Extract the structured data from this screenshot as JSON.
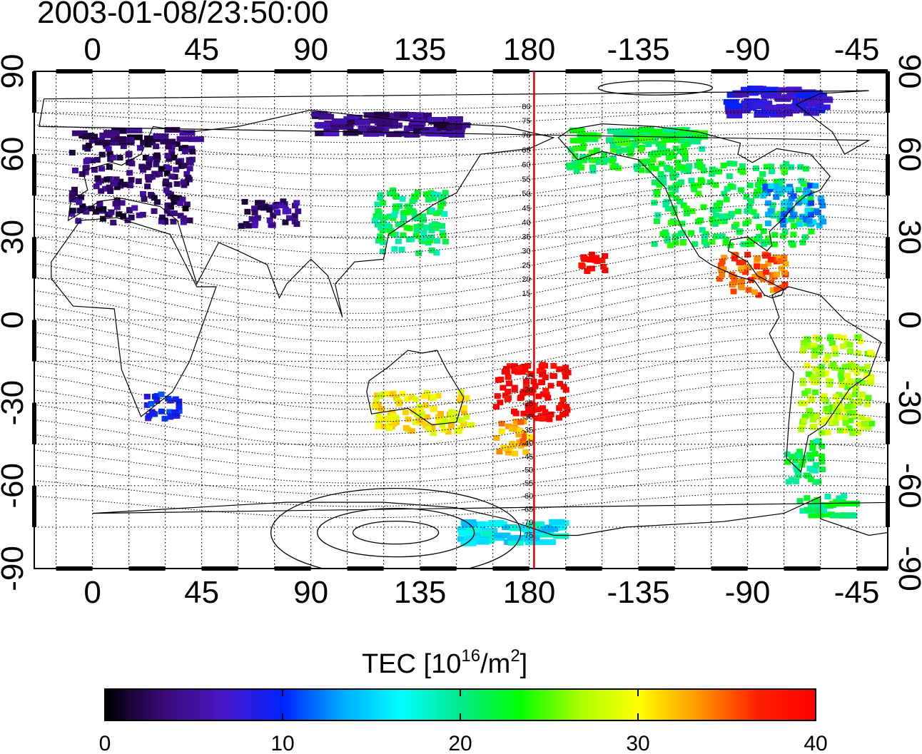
{
  "timestamp": "2003-01-08/23:50:00",
  "colorbar": {
    "title_text": "TEC  [10",
    "title_sup1": "16",
    "title_mid": "/m",
    "title_sup2": "2",
    "title_end": "]",
    "ticks": [
      "0",
      "10",
      "20",
      "30",
      "40"
    ],
    "min": 0,
    "max": 40,
    "colormap_stops": [
      "#000000",
      "#3a0a78",
      "#4b17c8",
      "#0022ff",
      "#00aaff",
      "#00ffff",
      "#00e88a",
      "#00ff00",
      "#a8ff00",
      "#ffff00",
      "#ff9900",
      "#ff2200",
      "#ff0000"
    ]
  },
  "map": {
    "lon_top_labels": [
      "0",
      "45",
      "90",
      "135",
      "180",
      "-135",
      "-90",
      "-45"
    ],
    "lon_bottom_labels": [
      "0",
      "45",
      "90",
      "135",
      "180",
      "-135",
      "-90",
      "-45"
    ],
    "lat_left_labels": [
      "90",
      "60",
      "30",
      "0",
      "-30",
      "-60",
      "-90"
    ],
    "lat_right_labels": [
      "90",
      "60",
      "30",
      "0",
      "-30",
      "-60",
      "-90"
    ],
    "lon_ticks_values": [
      0,
      45,
      90,
      135,
      180,
      225,
      270,
      315
    ],
    "lat_ticks_values": [
      90,
      60,
      30,
      0,
      -30,
      -60,
      -90
    ],
    "meridian_longitude": 182,
    "meridian_color": "#e00000",
    "magnetic_lat_labels": [
      "80",
      "75",
      "70",
      "65",
      "60",
      "55",
      "50",
      "45",
      "40",
      "35",
      "30",
      "25",
      "20",
      "15",
      "-15",
      "-20",
      "-25",
      "-30",
      "-35",
      "-40",
      "-45",
      "-50",
      "-55",
      "-60",
      "-65",
      "-70",
      "-75"
    ],
    "tec_regions": [
      {
        "name": "europe",
        "tec": 3,
        "lon": [
          -10,
          40
        ],
        "lat": [
          36,
          70
        ]
      },
      {
        "name": "central-asia",
        "tec": 4,
        "lon": [
          60,
          85
        ],
        "lat": [
          35,
          45
        ]
      },
      {
        "name": "east-asia",
        "tec": 21,
        "lon": [
          115,
          145
        ],
        "lat": [
          25,
          48
        ]
      },
      {
        "name": "north-america",
        "tec": 22,
        "lon": [
          -130,
          -65
        ],
        "lat": [
          28,
          58
        ]
      },
      {
        "name": "alaska-canada",
        "tec": 22,
        "lon": [
          -165,
          -110
        ],
        "lat": [
          55,
          70
        ]
      },
      {
        "name": "northeast-us",
        "tec": 13,
        "lon": [
          -85,
          -60
        ],
        "lat": [
          35,
          50
        ]
      },
      {
        "name": "central-america",
        "tec": 35,
        "lon": [
          -105,
          -75
        ],
        "lat": [
          10,
          25
        ]
      },
      {
        "name": "pacific-south",
        "tec": 40,
        "lon": [
          165,
          195
        ],
        "lat": [
          -35,
          -15
        ]
      },
      {
        "name": "new-zealand",
        "tec": 33,
        "lon": [
          165,
          180
        ],
        "lat": [
          -48,
          -35
        ]
      },
      {
        "name": "australia",
        "tec": 30,
        "lon": [
          115,
          155
        ],
        "lat": [
          -40,
          -25
        ]
      },
      {
        "name": "south-africa",
        "tec": 9,
        "lon": [
          20,
          35
        ],
        "lat": [
          -35,
          -25
        ]
      },
      {
        "name": "south-america",
        "tec": 27,
        "lon": [
          -70,
          -40
        ],
        "lat": [
          -40,
          -5
        ]
      },
      {
        "name": "patagonia",
        "tec": 21,
        "lon": [
          -75,
          -60
        ],
        "lat": [
          -58,
          -42
        ]
      },
      {
        "name": "antarctic-peninsula",
        "tec": 21,
        "lon": [
          -70,
          -50
        ],
        "lat": [
          -70,
          -62
        ]
      },
      {
        "name": "antarctic-pacific",
        "tec": 16,
        "lon": [
          150,
          190
        ],
        "lat": [
          -80,
          -72
        ]
      },
      {
        "name": "arctic-canada",
        "tec": 8,
        "lon": [
          -100,
          -60
        ],
        "lat": [
          75,
          85
        ]
      },
      {
        "name": "siberia",
        "tec": 4,
        "lon": [
          90,
          150
        ],
        "lat": [
          68,
          76
        ]
      },
      {
        "name": "hawaii-area",
        "tec": 40,
        "lon": [
          -160,
          -150
        ],
        "lat": [
          18,
          25
        ]
      }
    ]
  }
}
